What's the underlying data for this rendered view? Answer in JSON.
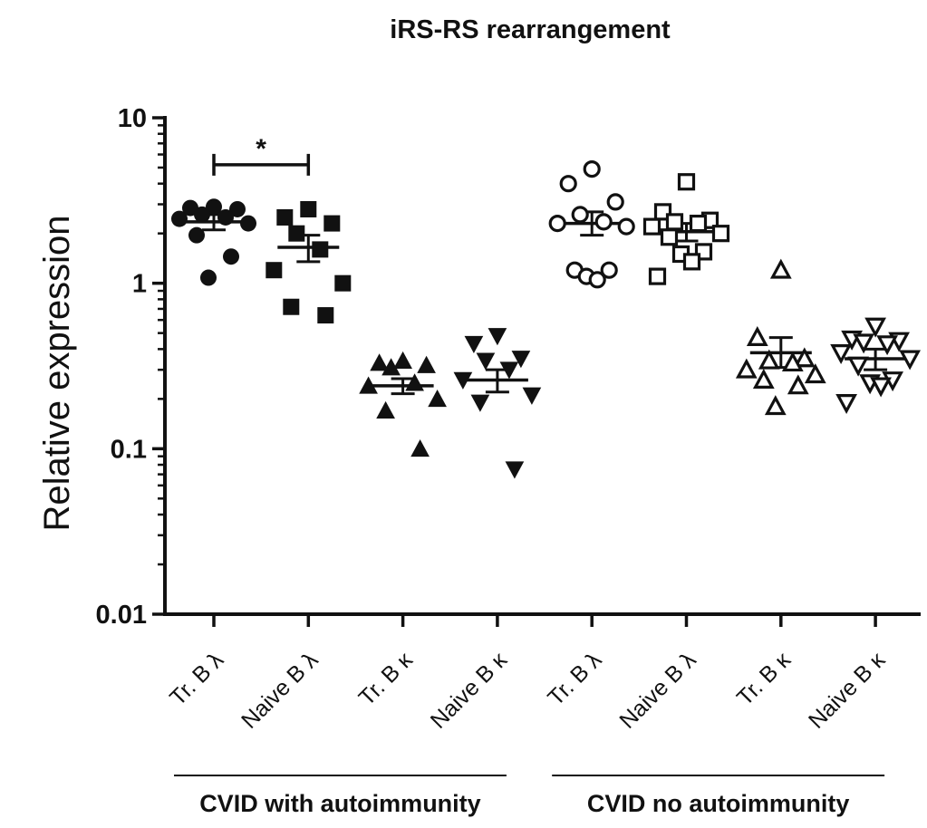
{
  "chart_data": {
    "type": "scatter",
    "title": "iRS-RS rearrangement",
    "ylabel": "Relative expression",
    "xlabel": "",
    "yscale": "log",
    "ylim": [
      0.01,
      10
    ],
    "yticks": [
      {
        "value": 10,
        "label": "10"
      },
      {
        "value": 1,
        "label": "1"
      },
      {
        "value": 0.1,
        "label": "0.1"
      },
      {
        "value": 0.01,
        "label": "0.01"
      }
    ],
    "categories": [
      {
        "label": "Tr. B λ",
        "marker": "circle",
        "filled": true,
        "mean": 2.35,
        "sem_high": 2.6,
        "sem_low": 2.1,
        "values": [
          2.9,
          2.8,
          2.85,
          2.6,
          2.5,
          2.45,
          2.3,
          1.95,
          1.45,
          1.08
        ]
      },
      {
        "label": "Naive B λ",
        "marker": "square",
        "filled": true,
        "mean": 1.65,
        "sem_high": 1.95,
        "sem_low": 1.35,
        "values": [
          2.8,
          2.5,
          2.3,
          2.0,
          1.6,
          1.2,
          1.0,
          0.72,
          0.64
        ]
      },
      {
        "label": "Tr. B κ",
        "marker": "triangle-up",
        "filled": true,
        "mean": 0.24,
        "sem_high": 0.265,
        "sem_low": 0.215,
        "values": [
          0.34,
          0.33,
          0.32,
          0.31,
          0.25,
          0.24,
          0.2,
          0.17,
          0.1
        ]
      },
      {
        "label": "Naive B κ",
        "marker": "triangle-down",
        "filled": true,
        "mean": 0.26,
        "sem_high": 0.3,
        "sem_low": 0.22,
        "values": [
          0.48,
          0.43,
          0.35,
          0.34,
          0.3,
          0.26,
          0.21,
          0.19,
          0.075
        ]
      },
      {
        "label": "Tr. B λ",
        "marker": "circle",
        "filled": false,
        "mean": 2.3,
        "sem_high": 2.7,
        "sem_low": 1.95,
        "values": [
          4.9,
          4.0,
          3.1,
          2.6,
          2.35,
          2.3,
          2.2,
          1.2,
          1.2,
          1.1,
          1.05
        ]
      },
      {
        "label": "Naive B λ",
        "marker": "square",
        "filled": false,
        "mean": 2.05,
        "sem_high": 2.3,
        "sem_low": 1.8,
        "values": [
          4.1,
          2.7,
          2.4,
          2.35,
          2.3,
          2.2,
          2.0,
          1.9,
          1.55,
          1.5,
          1.35,
          1.1
        ]
      },
      {
        "label": "Tr. B κ",
        "marker": "triangle-up",
        "filled": false,
        "mean": 0.38,
        "sem_high": 0.47,
        "sem_low": 0.31,
        "values": [
          1.2,
          0.47,
          0.35,
          0.34,
          0.33,
          0.3,
          0.28,
          0.26,
          0.24,
          0.18
        ]
      },
      {
        "label": "Naive B κ",
        "marker": "triangle-down",
        "filled": false,
        "mean": 0.35,
        "sem_high": 0.4,
        "sem_low": 0.3,
        "values": [
          0.55,
          0.46,
          0.45,
          0.44,
          0.43,
          0.38,
          0.35,
          0.32,
          0.26,
          0.25,
          0.24,
          0.19
        ]
      }
    ],
    "groups": [
      {
        "label": "CVID with autoimmunity",
        "categories": [
          0,
          1,
          2,
          3
        ]
      },
      {
        "label": "CVID no autoimmunity",
        "categories": [
          4,
          5,
          6,
          7
        ]
      }
    ],
    "significance": [
      {
        "from": 0,
        "to": 1,
        "label": "*",
        "level": 5.2
      }
    ],
    "colors": {
      "ink": "#111111",
      "background": "#ffffff"
    }
  }
}
